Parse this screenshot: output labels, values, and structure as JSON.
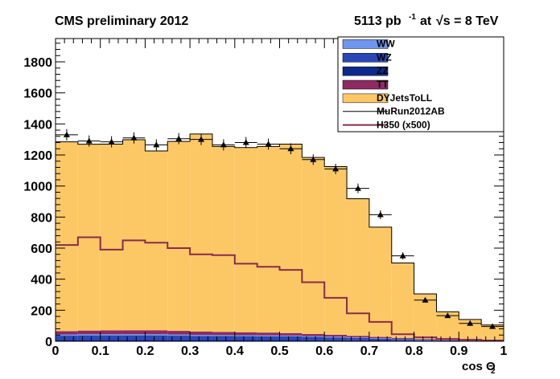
{
  "header": {
    "title_left": "CMS preliminary 2012",
    "lumi_value": "5113 pb",
    "lumi_unit_exp": "-1",
    "energy_prefix": "at",
    "energy_sqrt": "√s = 8 TeV"
  },
  "chart_data": {
    "type": "bar",
    "subtype": "stacked-histogram",
    "xlabel": "cos Θ",
    "xlabel_sub": "2",
    "ylabel": "",
    "xlim": [
      0,
      1
    ],
    "ylim": [
      0,
      1950
    ],
    "x_ticks": [
      "0",
      "0.1",
      "0.2",
      "0.3",
      "0.4",
      "0.5",
      "0.6",
      "0.7",
      "0.8",
      "0.9",
      "1"
    ],
    "y_ticks": [
      "0",
      "200",
      "400",
      "600",
      "800",
      "1000",
      "1200",
      "1400",
      "1600",
      "1800"
    ],
    "bin_edges": [
      0,
      0.05,
      0.1,
      0.15,
      0.2,
      0.25,
      0.3,
      0.35,
      0.4,
      0.45,
      0.5,
      0.55,
      0.6,
      0.65,
      0.7,
      0.75,
      0.8,
      0.85,
      0.9,
      0.95,
      1.0
    ],
    "stack": [
      {
        "name": "ZZ",
        "color": "#0b2a8c",
        "values": [
          8,
          8,
          8,
          8,
          8,
          8,
          8,
          8,
          8,
          8,
          8,
          7,
          7,
          6,
          5,
          4,
          3,
          2,
          1,
          1
        ]
      },
      {
        "name": "WZ",
        "color": "#2948b8",
        "values": [
          28,
          30,
          30,
          30,
          30,
          28,
          27,
          26,
          25,
          24,
          23,
          21,
          18,
          15,
          12,
          9,
          6,
          4,
          2,
          1
        ]
      },
      {
        "name": "WW",
        "color": "#6e96f0",
        "values": [
          7,
          7,
          7,
          7,
          7,
          7,
          6,
          6,
          6,
          6,
          6,
          5,
          5,
          4,
          3,
          3,
          2,
          1,
          1,
          1
        ]
      },
      {
        "name": "TT",
        "color": "#8e2a62",
        "values": [
          22,
          24,
          25,
          26,
          26,
          24,
          22,
          20,
          19,
          18,
          16,
          14,
          12,
          10,
          8,
          6,
          4,
          3,
          2,
          1
        ]
      },
      {
        "name": "DYJetsToLL",
        "color": "#fcc865",
        "values": [
          1220,
          1200,
          1200,
          1227,
          1155,
          1220,
          1272,
          1195,
          1190,
          1199,
          1217,
          1137,
          1083,
          883,
          707,
          482,
          290,
          180,
          134,
          101
        ]
      }
    ],
    "data_series": {
      "name": "MuRun2012AB",
      "values": [
        1330,
        1290,
        1285,
        1310,
        1265,
        1305,
        1300,
        1265,
        1280,
        1270,
        1240,
        1170,
        1110,
        985,
        815,
        550,
        265,
        165,
        115,
        95
      ],
      "errors": [
        37,
        36,
        36,
        36,
        36,
        36,
        36,
        36,
        36,
        36,
        35,
        34,
        33,
        31,
        29,
        23,
        16,
        13,
        11,
        10
      ]
    },
    "signal": {
      "name": "H350 (x500)",
      "color": "#8a2a4e",
      "values": [
        620,
        670,
        590,
        650,
        635,
        600,
        560,
        555,
        500,
        480,
        460,
        380,
        280,
        180,
        125,
        45,
        25,
        15,
        10,
        5
      ]
    },
    "legend": {
      "placement": "top-right",
      "entries": [
        {
          "label": "WW",
          "kind": "fill",
          "color": "#6e96f0"
        },
        {
          "label": "WZ",
          "kind": "fill",
          "color": "#2948b8"
        },
        {
          "label": "ZZ",
          "kind": "fill",
          "color": "#0b2a8c"
        },
        {
          "label": "TT",
          "kind": "fill",
          "color": "#8e2a62"
        },
        {
          "label": "DYJetsToLL",
          "kind": "fill",
          "color": "#fcc865"
        },
        {
          "label": "MuRun2012AB",
          "kind": "line",
          "color": "#000000"
        },
        {
          "label": "H350 (x500)",
          "kind": "line",
          "color": "#8a2a4e"
        }
      ]
    }
  }
}
